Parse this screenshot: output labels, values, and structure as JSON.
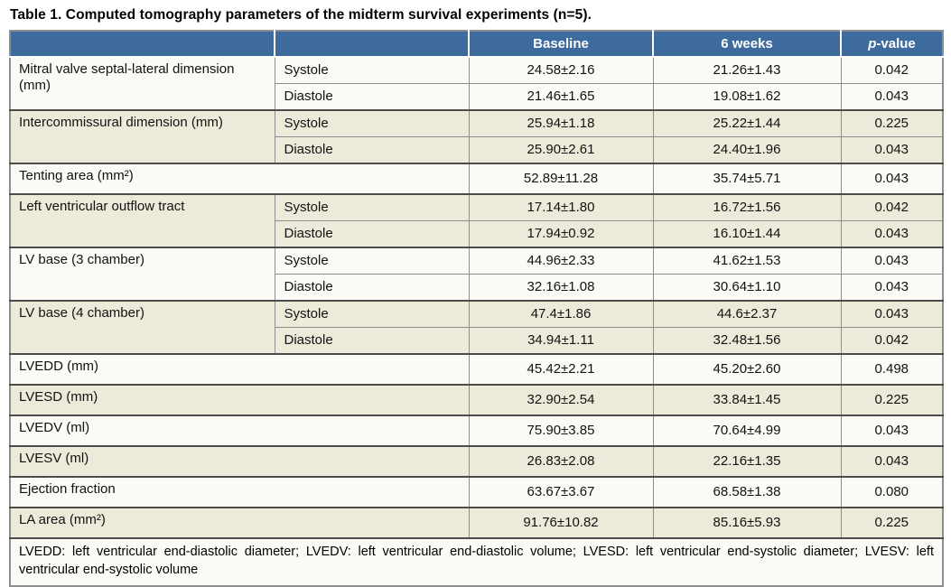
{
  "title": "Table 1. Computed tomography parameters of the midterm survival experiments (n=5).",
  "colors": {
    "header_bg": "#3d6b9e",
    "header_text": "#ffffff",
    "row_light": "#fbfaf5",
    "row_cream": "#edead9",
    "border": "#8e8e8e",
    "border_dark": "#4c4c4c"
  },
  "table": {
    "header": {
      "col_param": "",
      "col_phase": "",
      "col_baseline": "Baseline",
      "col_six_weeks": "6 weeks",
      "col_p_italic": "p",
      "col_p_rest": "-value"
    },
    "groups": [
      {
        "label": "Mitral valve septal-lateral dimension (mm)",
        "shade": "light",
        "rows": [
          {
            "sub": "Systole",
            "baseline": "24.58±2.16",
            "six_weeks": "21.26±1.43",
            "p": "0.042"
          },
          {
            "sub": "Diastole",
            "baseline": "21.46±1.65",
            "six_weeks": "19.08±1.62",
            "p": "0.043"
          }
        ]
      },
      {
        "label": "Intercommissural dimension (mm)",
        "shade": "cream",
        "rows": [
          {
            "sub": "Systole",
            "baseline": "25.94±1.18",
            "six_weeks": "25.22±1.44",
            "p": "0.225"
          },
          {
            "sub": "Diastole",
            "baseline": "25.90±2.61",
            "six_weeks": "24.40±1.96",
            "p": "0.043"
          }
        ]
      },
      {
        "label": "Tenting area (mm²)",
        "shade": "light",
        "rows": [
          {
            "sub": null,
            "baseline": "52.89±11.28",
            "six_weeks": "35.74±5.71",
            "p": "0.043"
          }
        ]
      },
      {
        "label": "Left ventricular outflow tract",
        "shade": "cream",
        "rows": [
          {
            "sub": "Systole",
            "baseline": "17.14±1.80",
            "six_weeks": "16.72±1.56",
            "p": "0.042"
          },
          {
            "sub": "Diastole",
            "baseline": "17.94±0.92",
            "six_weeks": "16.10±1.44",
            "p": "0.043"
          }
        ]
      },
      {
        "label": "LV base (3 chamber)",
        "shade": "light",
        "rows": [
          {
            "sub": "Systole",
            "baseline": "44.96±2.33",
            "six_weeks": "41.62±1.53",
            "p": "0.043"
          },
          {
            "sub": "Diastole",
            "baseline": "32.16±1.08",
            "six_weeks": "30.64±1.10",
            "p": "0.043"
          }
        ]
      },
      {
        "label": "LV base (4 chamber)",
        "shade": "cream",
        "rows": [
          {
            "sub": "Systole",
            "baseline": "47.4±1.86",
            "six_weeks": "44.6±2.37",
            "p": "0.043"
          },
          {
            "sub": "Diastole",
            "baseline": "34.94±1.11",
            "six_weeks": "32.48±1.56",
            "p": "0.042"
          }
        ]
      },
      {
        "label": "LVEDD (mm)",
        "shade": "light",
        "rows": [
          {
            "sub": null,
            "baseline": "45.42±2.21",
            "six_weeks": "45.20±2.60",
            "p": "0.498"
          }
        ]
      },
      {
        "label": "LVESD (mm)",
        "shade": "cream",
        "rows": [
          {
            "sub": null,
            "baseline": "32.90±2.54",
            "six_weeks": "33.84±1.45",
            "p": "0.225"
          }
        ]
      },
      {
        "label": "LVEDV (ml)",
        "shade": "light",
        "rows": [
          {
            "sub": null,
            "baseline": "75.90±3.85",
            "six_weeks": "70.64±4.99",
            "p": "0.043"
          }
        ]
      },
      {
        "label": "LVESV (ml)",
        "shade": "cream",
        "rows": [
          {
            "sub": null,
            "baseline": "26.83±2.08",
            "six_weeks": "22.16±1.35",
            "p": "0.043"
          }
        ]
      },
      {
        "label": "Ejection fraction",
        "shade": "light",
        "rows": [
          {
            "sub": null,
            "baseline": "63.67±3.67",
            "six_weeks": "68.58±1.38",
            "p": "0.080"
          }
        ]
      },
      {
        "label": "LA area (mm²)",
        "shade": "cream",
        "rows": [
          {
            "sub": null,
            "baseline": "91.76±10.82",
            "six_weeks": "85.16±5.93",
            "p": "0.225"
          }
        ]
      }
    ],
    "footnote": "LVEDD: left ventricular end-diastolic diameter; LVEDV: left ventricular end-diastolic volume; LVESD: left ventricular end-systolic diameter; LVESV: left ventricular end-systolic volume"
  }
}
